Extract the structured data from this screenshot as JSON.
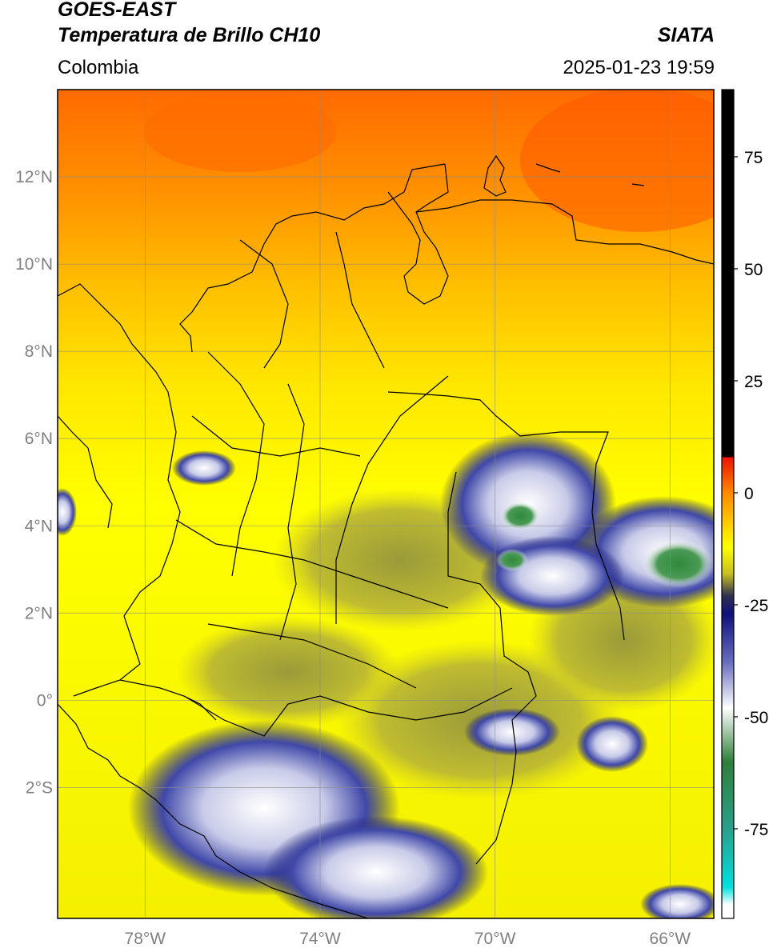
{
  "header": {
    "satellite": "GOES-EAST",
    "product": "Temperatura de Brillo CH10",
    "brand": "SIATA",
    "region": "Colombia",
    "timestamp": "2025-01-23 19:59"
  },
  "map": {
    "lon_range": [
      -80,
      -65
    ],
    "lat_range": [
      -5,
      14
    ],
    "lat_ticks": [
      {
        "value": 12,
        "label": "12°N"
      },
      {
        "value": 10,
        "label": "10°N"
      },
      {
        "value": 8,
        "label": "8°N"
      },
      {
        "value": 6,
        "label": "6°N"
      },
      {
        "value": 4,
        "label": "4°N"
      },
      {
        "value": 2,
        "label": "2°N"
      },
      {
        "value": 0,
        "label": "0°"
      },
      {
        "value": -2,
        "label": "2°S"
      }
    ],
    "lon_ticks": [
      {
        "value": -78,
        "label": "78°W"
      },
      {
        "value": -74,
        "label": "74°W"
      },
      {
        "value": -70,
        "label": "70°W"
      },
      {
        "value": -66,
        "label": "66°W"
      }
    ],
    "grid": true
  },
  "colorbar": {
    "range": [
      -95,
      90
    ],
    "ticks": [
      {
        "value": 75,
        "label": "75"
      },
      {
        "value": 50,
        "label": "50"
      },
      {
        "value": 25,
        "label": "25"
      },
      {
        "value": 0,
        "label": "0"
      },
      {
        "value": -25,
        "label": "-25"
      },
      {
        "value": -50,
        "label": "-50"
      },
      {
        "value": -75,
        "label": "-75"
      }
    ],
    "stops": [
      {
        "value": 90,
        "color": "#000000"
      },
      {
        "value": 8,
        "color": "#000000"
      },
      {
        "value": 7.9,
        "color": "#ee1100"
      },
      {
        "value": 0,
        "color": "#ff8800"
      },
      {
        "value": -12,
        "color": "#ffff00"
      },
      {
        "value": -18,
        "color": "#c8c020"
      },
      {
        "value": -23,
        "color": "#303050"
      },
      {
        "value": -27,
        "color": "#10107a"
      },
      {
        "value": -38,
        "color": "#6a70c0"
      },
      {
        "value": -48,
        "color": "#ffffff"
      },
      {
        "value": -60,
        "color": "#2f7f3a"
      },
      {
        "value": -75,
        "color": "#2a9f8a"
      },
      {
        "value": -88,
        "color": "#00e0e0"
      },
      {
        "value": -92,
        "color": "#ffffff"
      },
      {
        "value": -95,
        "color": "#ffffff"
      }
    ]
  }
}
